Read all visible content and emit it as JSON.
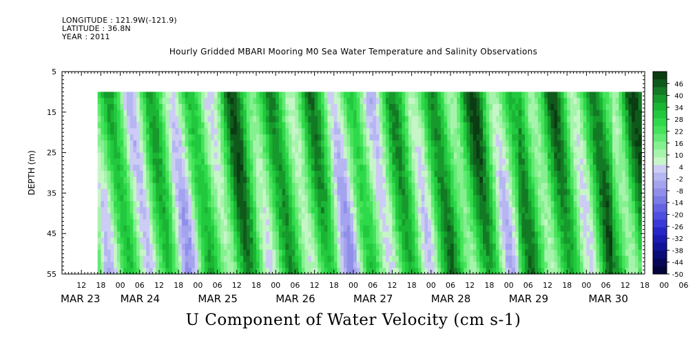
{
  "header": {
    "longitude": "LONGITUDE : 121.9W(-121.9)",
    "latitude": "LATITUDE : 36.8N",
    "year": "YEAR : 2011",
    "title": "Hourly Gridded MBARI Mooring M0 Sea Water Temperature and Salinity Observations"
  },
  "chart_data": {
    "type": "heatmap",
    "title": "Hourly Gridded MBARI Mooring M0 Sea Water Temperature and Salinity Observations",
    "xlabel": "U Component of Water Velocity (cm s-1)",
    "ylabel": "DEPTH (m)",
    "ylim": [
      5,
      55
    ],
    "y_inverted": true,
    "y_ticks": [
      5,
      15,
      25,
      35,
      45,
      55
    ],
    "data_depth_range": [
      10,
      55
    ],
    "x_range_hours": [
      "MAR 23 06",
      "MAR 30 18"
    ],
    "data_time_range": [
      "MAR 23 17",
      "MAR 30 17"
    ],
    "hour_tick_labels": [
      "12",
      "18",
      "00",
      "06",
      "12",
      "18",
      "00",
      "06",
      "12",
      "18",
      "00",
      "06",
      "12",
      "18",
      "00",
      "06",
      "12",
      "18",
      "00",
      "06",
      "12",
      "18",
      "00",
      "06",
      "12",
      "18",
      "00",
      "06",
      "12",
      "18",
      "00",
      "06"
    ],
    "day_labels": [
      "MAR 23",
      "MAR 24",
      "MAR 25",
      "MAR 26",
      "MAR 27",
      "MAR 28",
      "MAR 29",
      "MAR 30"
    ],
    "colorbar": {
      "labels": [
        "46",
        "40",
        "34",
        "28",
        "22",
        "16",
        "10",
        "4",
        "-2",
        "-8",
        "-14",
        "-20",
        "-26",
        "-32",
        "-38",
        "-44",
        "-50"
      ],
      "min": -50,
      "max": 52,
      "step": 3,
      "colors_high_to_low": [
        "#0a3d12",
        "#0f5a1b",
        "#137a24",
        "#179a2c",
        "#1bb534",
        "#22c93e",
        "#2fda4a",
        "#45e35a",
        "#63ea74",
        "#85f08f",
        "#a6f4ab",
        "#c6f6c7",
        "#ccccf5",
        "#b6b6f2",
        "#a3a3ee",
        "#8f8fea",
        "#7b7be6",
        "#6464e3",
        "#5050e0",
        "#3a3ad8",
        "#2727c8",
        "#1b1bb0",
        "#121296",
        "#0c0c78",
        "#070758",
        "#04043c"
      ]
    }
  }
}
